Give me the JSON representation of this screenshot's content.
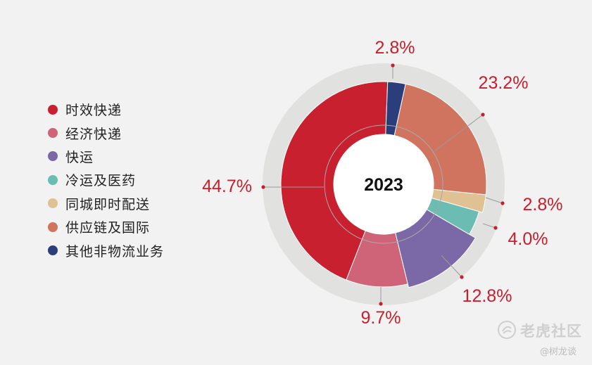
{
  "chart_data": {
    "type": "pie",
    "title": "2023",
    "categories": [
      "时效快递",
      "经济快递",
      "快运",
      "冷运及医药",
      "同城即时配送",
      "供应链及国际",
      "其他非物流业务"
    ],
    "values": [
      44.7,
      9.7,
      12.8,
      4.0,
      2.8,
      23.2,
      2.8
    ],
    "data_labels": [
      "44.7%",
      "9.7%",
      "12.8%",
      "4.0%",
      "2.8%",
      "23.2%",
      "2.8%"
    ],
    "colors": [
      "#c8202f",
      "#cf6478",
      "#7b68a6",
      "#6bbcb3",
      "#dfc193",
      "#d07460",
      "#2b3e7b"
    ],
    "legend_position": "left",
    "label_color": "#c81e2d"
  },
  "watermark": {
    "brand": "老虎社区",
    "author": "@树龙谈"
  }
}
